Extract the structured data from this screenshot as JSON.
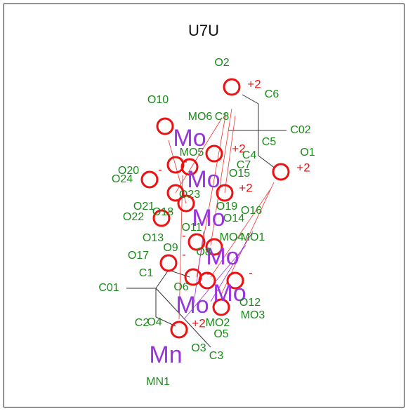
{
  "title": "U7U",
  "atoms": [
    "O2",
    "C6",
    "O10",
    "MO6",
    "C8",
    "C02",
    "C5",
    "O1",
    "MO5",
    "C4",
    "C7",
    "O20",
    "O24",
    "O15",
    "O23",
    "O21",
    "O19",
    "O16",
    "O22",
    "O18",
    "O14",
    "O11",
    "MO4",
    "MO1",
    "O13",
    "O9",
    "O8",
    "O17",
    "C1",
    "C01",
    "O6",
    "O12",
    "MO3",
    "C2",
    "O4",
    "MO2",
    "O5",
    "O3",
    "C3",
    "MN1"
  ],
  "symbols": [
    "Mo",
    "Mo",
    "Mo",
    "Mo",
    "Mo",
    "Mo",
    "Mn"
  ],
  "charges": [
    "+2",
    "+2",
    "-",
    "-",
    "+2",
    "+2",
    "-",
    "-",
    "-",
    "-",
    "-",
    "+2"
  ]
}
